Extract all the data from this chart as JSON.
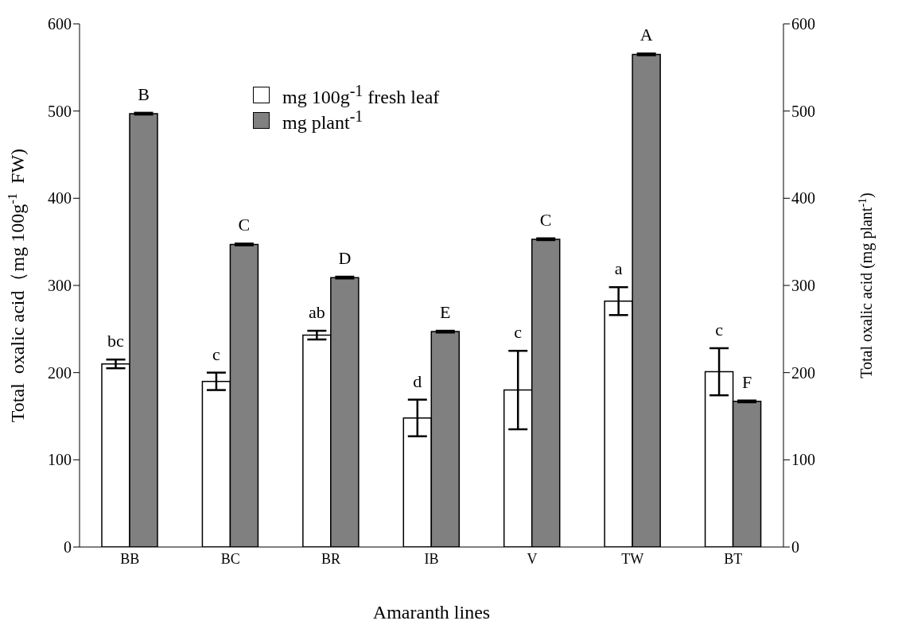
{
  "chart_data": {
    "type": "bar",
    "xlabel": "Amaranth lines",
    "ylabel": "Total  oxalic acid（mg 100g$^{-1}$  FW)",
    "y2label": "Total oxalic acid (mg plant$^{-1}$)",
    "categories": [
      "BB",
      "BC",
      "BR",
      "IB",
      "V",
      "TW",
      "BT"
    ],
    "series": [
      {
        "name": "mg 100g$^{-1}$ fresh leaf",
        "color": "#ffffff",
        "values": [
          210,
          190,
          243,
          148,
          180,
          282,
          201
        ],
        "errors": [
          5,
          10,
          5,
          21,
          45,
          16,
          27
        ]
      },
      {
        "name": "mg plant$^{-1}$",
        "color": "#808080",
        "axis": "y2",
        "values": [
          497,
          347,
          309,
          247,
          353,
          565,
          167
        ],
        "errors": [
          1,
          1,
          1,
          1,
          1,
          1,
          1
        ]
      }
    ],
    "ylim": [
      0,
      600
    ],
    "yticks": [
      0,
      100,
      200,
      300,
      400,
      500,
      600
    ],
    "y2lim": [
      0,
      600
    ],
    "y2ticks": [
      0,
      100,
      200,
      300,
      400,
      500,
      600
    ],
    "grid": false,
    "legend": "top",
    "annotations": [
      {
        "text": "bc",
        "x": "BB",
        "y": 210
      },
      {
        "text": "c",
        "x": "BC",
        "y": 190
      },
      {
        "text": "ab",
        "x": "BR",
        "y": 243
      },
      {
        "text": "d",
        "x": "IB",
        "y": 148
      },
      {
        "text": "c",
        "x": "V",
        "y": 180
      },
      {
        "text": "a",
        "x": "TW",
        "y": 282
      },
      {
        "text": "c",
        "x": "BT",
        "y": 201
      },
      {
        "text": "B",
        "x": "BB",
        "y": 497
      },
      {
        "text": "C",
        "x": "BC",
        "y": 347
      },
      {
        "text": "D",
        "x": "BR",
        "y": 309
      },
      {
        "text": "E",
        "x": "IB",
        "y": 247
      },
      {
        "text": "C",
        "x": "V",
        "y": 353
      },
      {
        "text": "A",
        "x": "TW",
        "y": 565
      },
      {
        "text": "F",
        "x": "BT",
        "y": 167
      }
    ]
  }
}
